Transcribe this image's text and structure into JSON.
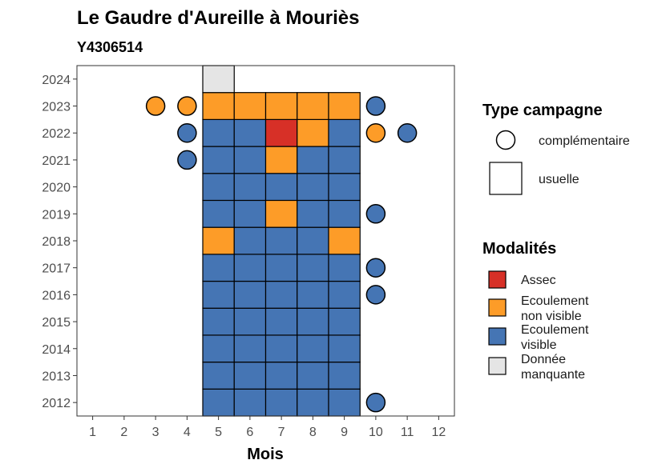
{
  "chart_data": {
    "type": "heatmap",
    "title": "Le Gaudre d'Aureille à Mouriès",
    "subtitle": "Y4306514",
    "xlabel": "Mois",
    "ylabel": "",
    "x_ticks": [
      1,
      2,
      3,
      4,
      5,
      6,
      7,
      8,
      9,
      10,
      11,
      12
    ],
    "y_ticks": [
      2012,
      2013,
      2014,
      2015,
      2016,
      2017,
      2018,
      2019,
      2020,
      2021,
      2022,
      2023,
      2024
    ],
    "xlim": [
      0.5,
      12.5
    ],
    "ylim": [
      2011.5,
      2024.5
    ],
    "colors": {
      "assec": "#d73027",
      "ecoulement_non_visible": "#fd9c28",
      "ecoulement_visible": "#4575b4",
      "donnee_manquante": "#e5e5e5"
    },
    "legend_type": {
      "title": "Type campagne",
      "items": [
        {
          "label": "complémentaire",
          "shape": "circle"
        },
        {
          "label": "usuelle",
          "shape": "square"
        }
      ]
    },
    "legend_modalites": {
      "title": "Modalités",
      "items": [
        {
          "key": "assec",
          "line1": "Assec",
          "line2": ""
        },
        {
          "key": "ecoulement_non_visible",
          "line1": "Ecoulement",
          "line2": "non visible"
        },
        {
          "key": "ecoulement_visible",
          "line1": "Ecoulement",
          "line2": "visible"
        },
        {
          "key": "donnee_manquante",
          "line1": "Donnée",
          "line2": "manquante"
        }
      ]
    },
    "usual": [
      {
        "year": 2012,
        "month": 5,
        "mod": "ecoulement_visible"
      },
      {
        "year": 2012,
        "month": 6,
        "mod": "ecoulement_visible"
      },
      {
        "year": 2012,
        "month": 7,
        "mod": "ecoulement_visible"
      },
      {
        "year": 2012,
        "month": 8,
        "mod": "ecoulement_visible"
      },
      {
        "year": 2012,
        "month": 9,
        "mod": "ecoulement_visible"
      },
      {
        "year": 2013,
        "month": 5,
        "mod": "ecoulement_visible"
      },
      {
        "year": 2013,
        "month": 6,
        "mod": "ecoulement_visible"
      },
      {
        "year": 2013,
        "month": 7,
        "mod": "ecoulement_visible"
      },
      {
        "year": 2013,
        "month": 8,
        "mod": "ecoulement_visible"
      },
      {
        "year": 2013,
        "month": 9,
        "mod": "ecoulement_visible"
      },
      {
        "year": 2014,
        "month": 5,
        "mod": "ecoulement_visible"
      },
      {
        "year": 2014,
        "month": 6,
        "mod": "ecoulement_visible"
      },
      {
        "year": 2014,
        "month": 7,
        "mod": "ecoulement_visible"
      },
      {
        "year": 2014,
        "month": 8,
        "mod": "ecoulement_visible"
      },
      {
        "year": 2014,
        "month": 9,
        "mod": "ecoulement_visible"
      },
      {
        "year": 2015,
        "month": 5,
        "mod": "ecoulement_visible"
      },
      {
        "year": 2015,
        "month": 6,
        "mod": "ecoulement_visible"
      },
      {
        "year": 2015,
        "month": 7,
        "mod": "ecoulement_visible"
      },
      {
        "year": 2015,
        "month": 8,
        "mod": "ecoulement_visible"
      },
      {
        "year": 2015,
        "month": 9,
        "mod": "ecoulement_visible"
      },
      {
        "year": 2016,
        "month": 5,
        "mod": "ecoulement_visible"
      },
      {
        "year": 2016,
        "month": 6,
        "mod": "ecoulement_visible"
      },
      {
        "year": 2016,
        "month": 7,
        "mod": "ecoulement_visible"
      },
      {
        "year": 2016,
        "month": 8,
        "mod": "ecoulement_visible"
      },
      {
        "year": 2016,
        "month": 9,
        "mod": "ecoulement_visible"
      },
      {
        "year": 2017,
        "month": 5,
        "mod": "ecoulement_visible"
      },
      {
        "year": 2017,
        "month": 6,
        "mod": "ecoulement_visible"
      },
      {
        "year": 2017,
        "month": 7,
        "mod": "ecoulement_visible"
      },
      {
        "year": 2017,
        "month": 8,
        "mod": "ecoulement_visible"
      },
      {
        "year": 2017,
        "month": 9,
        "mod": "ecoulement_visible"
      },
      {
        "year": 2018,
        "month": 5,
        "mod": "ecoulement_non_visible"
      },
      {
        "year": 2018,
        "month": 6,
        "mod": "ecoulement_visible"
      },
      {
        "year": 2018,
        "month": 7,
        "mod": "ecoulement_visible"
      },
      {
        "year": 2018,
        "month": 8,
        "mod": "ecoulement_visible"
      },
      {
        "year": 2018,
        "month": 9,
        "mod": "ecoulement_non_visible"
      },
      {
        "year": 2019,
        "month": 5,
        "mod": "ecoulement_visible"
      },
      {
        "year": 2019,
        "month": 6,
        "mod": "ecoulement_visible"
      },
      {
        "year": 2019,
        "month": 7,
        "mod": "ecoulement_non_visible"
      },
      {
        "year": 2019,
        "month": 8,
        "mod": "ecoulement_visible"
      },
      {
        "year": 2019,
        "month": 9,
        "mod": "ecoulement_visible"
      },
      {
        "year": 2020,
        "month": 5,
        "mod": "ecoulement_visible"
      },
      {
        "year": 2020,
        "month": 6,
        "mod": "ecoulement_visible"
      },
      {
        "year": 2020,
        "month": 7,
        "mod": "ecoulement_visible"
      },
      {
        "year": 2020,
        "month": 8,
        "mod": "ecoulement_visible"
      },
      {
        "year": 2020,
        "month": 9,
        "mod": "ecoulement_visible"
      },
      {
        "year": 2021,
        "month": 5,
        "mod": "ecoulement_visible"
      },
      {
        "year": 2021,
        "month": 6,
        "mod": "ecoulement_visible"
      },
      {
        "year": 2021,
        "month": 7,
        "mod": "ecoulement_non_visible"
      },
      {
        "year": 2021,
        "month": 8,
        "mod": "ecoulement_visible"
      },
      {
        "year": 2021,
        "month": 9,
        "mod": "ecoulement_visible"
      },
      {
        "year": 2022,
        "month": 5,
        "mod": "ecoulement_visible"
      },
      {
        "year": 2022,
        "month": 6,
        "mod": "ecoulement_visible"
      },
      {
        "year": 2022,
        "month": 7,
        "mod": "assec"
      },
      {
        "year": 2022,
        "month": 8,
        "mod": "ecoulement_non_visible"
      },
      {
        "year": 2022,
        "month": 9,
        "mod": "ecoulement_visible"
      },
      {
        "year": 2023,
        "month": 5,
        "mod": "ecoulement_non_visible"
      },
      {
        "year": 2023,
        "month": 6,
        "mod": "ecoulement_non_visible"
      },
      {
        "year": 2023,
        "month": 7,
        "mod": "ecoulement_non_visible"
      },
      {
        "year": 2023,
        "month": 8,
        "mod": "ecoulement_non_visible"
      },
      {
        "year": 2023,
        "month": 9,
        "mod": "ecoulement_non_visible"
      },
      {
        "year": 2024,
        "month": 5,
        "mod": "donnee_manquante"
      }
    ],
    "complementary": [
      {
        "year": 2023,
        "month": 3,
        "mod": "ecoulement_non_visible"
      },
      {
        "year": 2023,
        "month": 4,
        "mod": "ecoulement_non_visible"
      },
      {
        "year": 2023,
        "month": 10,
        "mod": "ecoulement_visible"
      },
      {
        "year": 2022,
        "month": 4,
        "mod": "ecoulement_visible"
      },
      {
        "year": 2022,
        "month": 10,
        "mod": "ecoulement_non_visible"
      },
      {
        "year": 2022,
        "month": 11,
        "mod": "ecoulement_visible"
      },
      {
        "year": 2021,
        "month": 4,
        "mod": "ecoulement_visible"
      },
      {
        "year": 2019,
        "month": 10,
        "mod": "ecoulement_visible"
      },
      {
        "year": 2017,
        "month": 10,
        "mod": "ecoulement_visible"
      },
      {
        "year": 2016,
        "month": 10,
        "mod": "ecoulement_visible"
      },
      {
        "year": 2012,
        "month": 10,
        "mod": "ecoulement_visible"
      }
    ]
  }
}
